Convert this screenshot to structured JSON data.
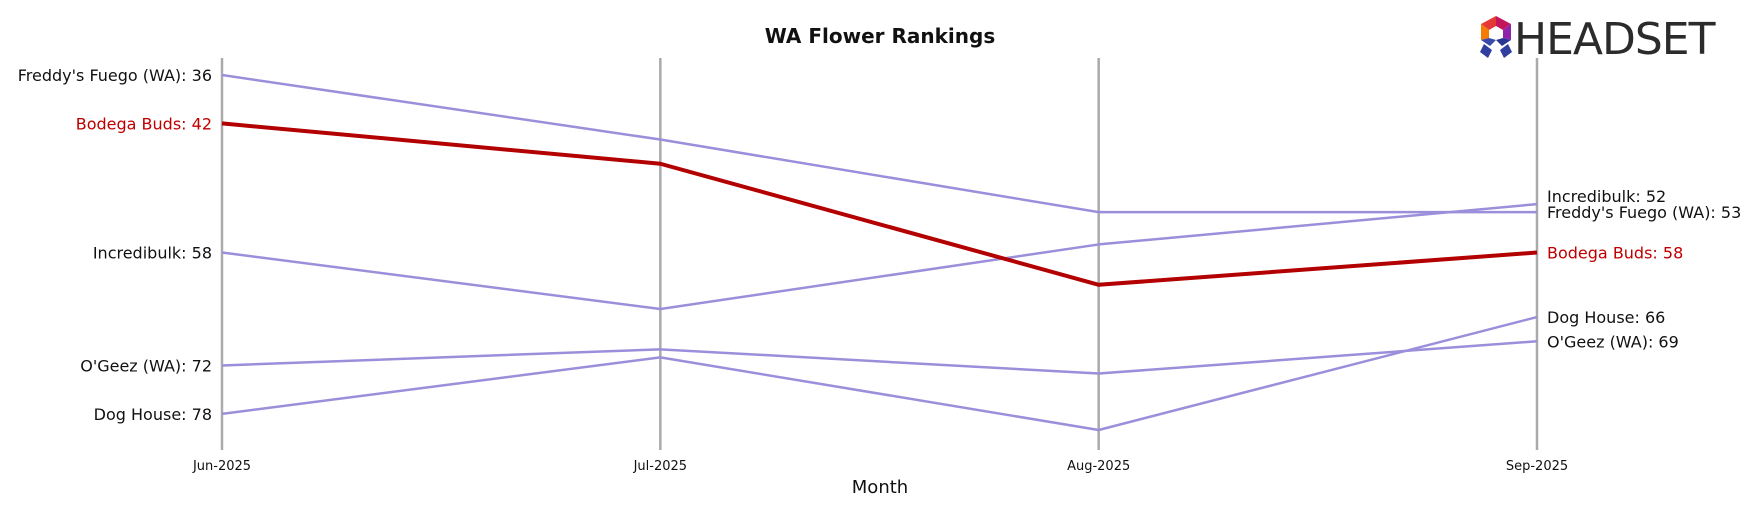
{
  "chart_data": {
    "type": "line",
    "title": "WA Flower Rankings",
    "xlabel": "Month",
    "ylabel": "",
    "categories": [
      "Jun-2025",
      "Jul-2025",
      "Aug-2025",
      "Sep-2025"
    ],
    "y_inverted": true,
    "ylim": [
      31,
      82
    ],
    "grid": "vertical",
    "series": [
      {
        "name": "Freddy's Fuego (WA)",
        "values": [
          36,
          44,
          53,
          53
        ],
        "color": "#9b8fdb",
        "start_label": "Freddy's Fuego (WA): 36",
        "end_label": "Freddy's Fuego (WA): 53"
      },
      {
        "name": "Bodega Buds",
        "values": [
          42,
          47,
          62,
          58
        ],
        "color": "#b30000",
        "highlight": true,
        "start_label": "Bodega Buds: 42",
        "end_label": "Bodega Buds: 58"
      },
      {
        "name": "Incredibulk",
        "values": [
          58,
          65,
          57,
          52
        ],
        "color": "#9b8fdb",
        "start_label": "Incredibulk: 58",
        "end_label": "Incredibulk: 52"
      },
      {
        "name": "O'Geez (WA)",
        "values": [
          72,
          70,
          73,
          69
        ],
        "color": "#9b8fdb",
        "start_label": "O'Geez (WA): 72",
        "end_label": "O'Geez (WA): 69"
      },
      {
        "name": "Dog House",
        "values": [
          78,
          71,
          80,
          66
        ],
        "color": "#9b8fdb",
        "start_label": "Dog House: 78",
        "end_label": "Dog House: 66"
      }
    ]
  },
  "brand": {
    "name": "HEADSET",
    "icon": "headset-logo-icon"
  }
}
